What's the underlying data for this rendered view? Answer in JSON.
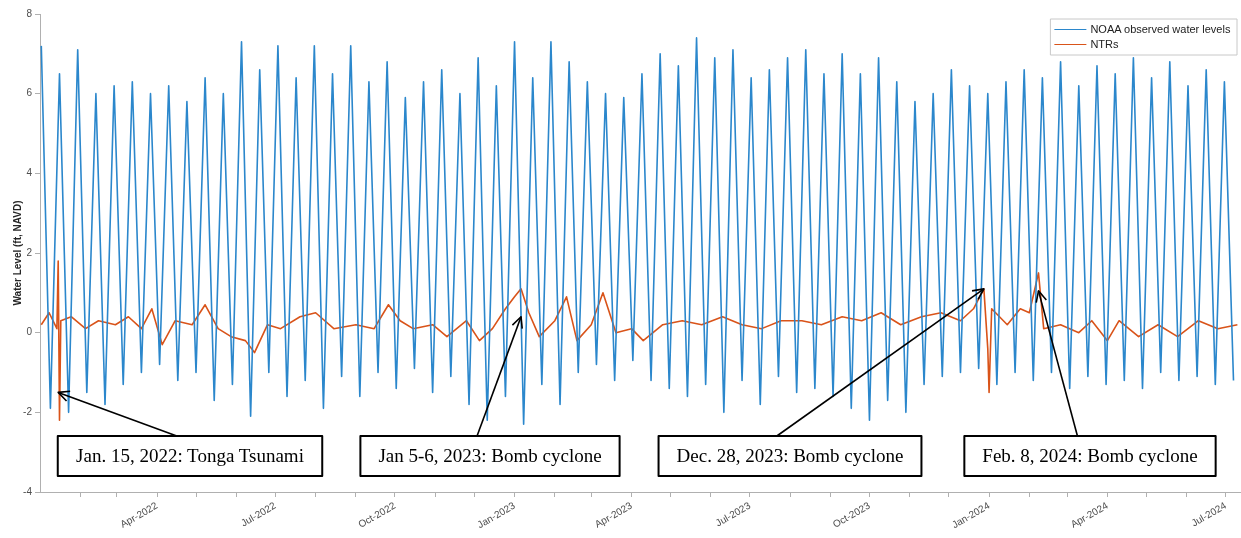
{
  "chart_data": {
    "type": "line",
    "ylabel": "Water Level (ft, NAVD)",
    "xlim": [
      "2022-01-01",
      "2024-07-12"
    ],
    "ylim": [
      -4,
      8
    ],
    "yticks": [
      -4,
      -2,
      0,
      2,
      4,
      6,
      8
    ],
    "xticks": [
      {
        "value": "2022-02",
        "label": null
      },
      {
        "value": "2022-03",
        "label": null
      },
      {
        "value": "2022-04",
        "label": "Apr-2022"
      },
      {
        "value": "2022-05",
        "label": null
      },
      {
        "value": "2022-06",
        "label": null
      },
      {
        "value": "2022-07",
        "label": "Jul-2022"
      },
      {
        "value": "2022-08",
        "label": null
      },
      {
        "value": "2022-09",
        "label": null
      },
      {
        "value": "2022-10",
        "label": "Oct-2022"
      },
      {
        "value": "2022-11",
        "label": null
      },
      {
        "value": "2022-12",
        "label": null
      },
      {
        "value": "2023-01",
        "label": "Jan-2023"
      },
      {
        "value": "2023-02",
        "label": null
      },
      {
        "value": "2023-03",
        "label": null
      },
      {
        "value": "2023-04",
        "label": "Apr-2023"
      },
      {
        "value": "2023-05",
        "label": null
      },
      {
        "value": "2023-06",
        "label": null
      },
      {
        "value": "2023-07",
        "label": "Jul-2023"
      },
      {
        "value": "2023-08",
        "label": null
      },
      {
        "value": "2023-09",
        "label": null
      },
      {
        "value": "2023-10",
        "label": "Oct-2023"
      },
      {
        "value": "2023-11",
        "label": null
      },
      {
        "value": "2023-12",
        "label": null
      },
      {
        "value": "2024-01",
        "label": "Jan-2024"
      },
      {
        "value": "2024-02",
        "label": null
      },
      {
        "value": "2024-03",
        "label": null
      },
      {
        "value": "2024-04",
        "label": "Apr-2024"
      },
      {
        "value": "2024-05",
        "label": null
      },
      {
        "value": "2024-06",
        "label": null
      },
      {
        "value": "2024-07",
        "label": "Jul-2024"
      }
    ],
    "legend": "top right",
    "marker": "none",
    "series": [
      {
        "name": "NOAA observed water levels",
        "color": "#2b87cc",
        "x": [
          "2022-01-02",
          "2022-01-09",
          "2022-01-16",
          "2022-01-23",
          "2022-01-30",
          "2022-02-06",
          "2022-02-13",
          "2022-02-20",
          "2022-02-27",
          "2022-03-06",
          "2022-03-13",
          "2022-03-20",
          "2022-03-27",
          "2022-04-03",
          "2022-04-10",
          "2022-04-17",
          "2022-04-24",
          "2022-05-01",
          "2022-05-08",
          "2022-05-15",
          "2022-05-22",
          "2022-05-29",
          "2022-06-05",
          "2022-06-12",
          "2022-06-19",
          "2022-06-26",
          "2022-07-03",
          "2022-07-10",
          "2022-07-17",
          "2022-07-24",
          "2022-07-31",
          "2022-08-07",
          "2022-08-14",
          "2022-08-21",
          "2022-08-28",
          "2022-09-04",
          "2022-09-11",
          "2022-09-18",
          "2022-09-25",
          "2022-10-02",
          "2022-10-09",
          "2022-10-16",
          "2022-10-23",
          "2022-10-30",
          "2022-11-06",
          "2022-11-13",
          "2022-11-20",
          "2022-11-27",
          "2022-12-04",
          "2022-12-11",
          "2022-12-18",
          "2022-12-25",
          "2023-01-01",
          "2023-01-08",
          "2023-01-15",
          "2023-01-22",
          "2023-01-29",
          "2023-02-05",
          "2023-02-12",
          "2023-02-19",
          "2023-02-26",
          "2023-03-05",
          "2023-03-12",
          "2023-03-19",
          "2023-03-26",
          "2023-04-02",
          "2023-04-09",
          "2023-04-16",
          "2023-04-23",
          "2023-04-30",
          "2023-05-07",
          "2023-05-14",
          "2023-05-21",
          "2023-05-28",
          "2023-06-04",
          "2023-06-11",
          "2023-06-18",
          "2023-06-25",
          "2023-07-02",
          "2023-07-09",
          "2023-07-16",
          "2023-07-23",
          "2023-07-30",
          "2023-08-06",
          "2023-08-13",
          "2023-08-20",
          "2023-08-27",
          "2023-09-03",
          "2023-09-10",
          "2023-09-17",
          "2023-09-24",
          "2023-10-01",
          "2023-10-08",
          "2023-10-15",
          "2023-10-22",
          "2023-10-29",
          "2023-11-05",
          "2023-11-12",
          "2023-11-19",
          "2023-11-26",
          "2023-12-03",
          "2023-12-10",
          "2023-12-17",
          "2023-12-24",
          "2023-12-31",
          "2024-01-07",
          "2024-01-14",
          "2024-01-21",
          "2024-01-28",
          "2024-02-04",
          "2024-02-11",
          "2024-02-18",
          "2024-02-25",
          "2024-03-03",
          "2024-03-10",
          "2024-03-17",
          "2024-03-24",
          "2024-03-31",
          "2024-04-07",
          "2024-04-14",
          "2024-04-21",
          "2024-04-28",
          "2024-05-05",
          "2024-05-12",
          "2024-05-19",
          "2024-05-26",
          "2024-06-02",
          "2024-06-09",
          "2024-06-16",
          "2024-06-23",
          "2024-06-30",
          "2024-07-07"
        ],
        "values": [
          7.2,
          -1.9,
          6.5,
          -2.0,
          7.1,
          -1.5,
          6.0,
          -1.8,
          6.2,
          -1.3,
          6.3,
          -1.0,
          6.0,
          -0.8,
          6.2,
          -1.2,
          5.8,
          -1.0,
          6.4,
          -1.7,
          6.0,
          -1.3,
          7.3,
          -2.1,
          6.6,
          -1.0,
          7.2,
          -1.6,
          6.4,
          -1.2,
          7.2,
          -1.9,
          6.5,
          -1.1,
          7.2,
          -1.6,
          6.3,
          -1.0,
          6.8,
          -1.4,
          5.9,
          -0.9,
          6.3,
          -1.5,
          6.6,
          -1.1,
          6.0,
          -1.8,
          6.9,
          -2.2,
          6.2,
          -1.6,
          7.3,
          -2.3,
          6.4,
          -1.3,
          7.3,
          -1.8,
          6.8,
          -1.0,
          6.3,
          -0.8,
          6.0,
          -1.2,
          5.9,
          -0.7,
          6.5,
          -1.2,
          7.0,
          -1.4,
          6.7,
          -1.6,
          7.4,
          -1.3,
          6.9,
          -2.0,
          7.1,
          -1.2,
          6.4,
          -1.8,
          6.6,
          -1.1,
          6.9,
          -1.5,
          7.1,
          -1.4,
          6.5,
          -1.6,
          7.0,
          -1.9,
          6.5,
          -2.2,
          6.9,
          -1.7,
          6.3,
          -2.0,
          5.8,
          -1.3,
          6.0,
          -1.1,
          6.6,
          -1.0,
          6.2,
          -0.9,
          6.0,
          -1.3,
          6.3,
          -1.0,
          6.6,
          -1.2,
          6.4,
          -1.0,
          6.8,
          -1.4,
          6.2,
          -1.1,
          6.7,
          -1.3,
          6.5,
          -1.2,
          6.9,
          -1.4,
          6.4,
          -1.0,
          6.8,
          -1.2,
          6.2,
          -1.1,
          6.6,
          -1.3,
          6.3,
          -1.2
        ]
      },
      {
        "name": "NTRs",
        "color": "#d95319",
        "x": [
          "2022-01-02",
          "2022-01-08",
          "2022-01-14",
          "2022-01-15",
          "2022-01-16",
          "2022-01-17",
          "2022-01-25",
          "2022-02-05",
          "2022-02-15",
          "2022-02-28",
          "2022-03-10",
          "2022-03-20",
          "2022-03-28",
          "2022-04-05",
          "2022-04-15",
          "2022-04-28",
          "2022-05-08",
          "2022-05-18",
          "2022-05-28",
          "2022-06-08",
          "2022-06-15",
          "2022-06-25",
          "2022-07-05",
          "2022-07-20",
          "2022-08-01",
          "2022-08-15",
          "2022-09-01",
          "2022-09-15",
          "2022-09-26",
          "2022-10-05",
          "2022-10-15",
          "2022-10-30",
          "2022-11-10",
          "2022-11-25",
          "2022-12-05",
          "2022-12-15",
          "2022-12-25",
          "2023-01-01",
          "2023-01-06",
          "2023-01-12",
          "2023-01-20",
          "2023-02-01",
          "2023-02-10",
          "2023-02-18",
          "2023-03-01",
          "2023-03-10",
          "2023-03-20",
          "2023-04-01",
          "2023-04-10",
          "2023-04-25",
          "2023-05-10",
          "2023-05-25",
          "2023-06-10",
          "2023-06-25",
          "2023-07-10",
          "2023-07-25",
          "2023-08-10",
          "2023-08-25",
          "2023-09-10",
          "2023-09-25",
          "2023-10-10",
          "2023-10-25",
          "2023-11-10",
          "2023-11-25",
          "2023-12-10",
          "2023-12-20",
          "2023-12-28",
          "2023-12-31",
          "2024-01-01",
          "2024-01-03",
          "2024-01-15",
          "2024-01-25",
          "2024-02-01",
          "2024-02-08",
          "2024-02-12",
          "2024-02-25",
          "2024-03-10",
          "2024-03-20",
          "2024-04-01",
          "2024-04-10",
          "2024-04-25",
          "2024-05-10",
          "2024-05-25",
          "2024-06-10",
          "2024-06-25",
          "2024-07-10"
        ],
        "values": [
          0.2,
          0.5,
          0.1,
          1.8,
          -2.2,
          0.3,
          0.4,
          0.1,
          0.3,
          0.2,
          0.4,
          0.1,
          0.6,
          -0.3,
          0.3,
          0.2,
          0.7,
          0.1,
          -0.1,
          -0.2,
          -0.5,
          0.2,
          0.1,
          0.4,
          0.5,
          0.1,
          0.2,
          0.1,
          0.7,
          0.3,
          0.1,
          0.2,
          -0.1,
          0.3,
          -0.2,
          0.1,
          0.6,
          0.9,
          1.1,
          0.5,
          -0.1,
          0.3,
          0.9,
          -0.2,
          0.2,
          1.0,
          0.0,
          0.1,
          -0.2,
          0.2,
          0.3,
          0.2,
          0.4,
          0.2,
          0.1,
          0.3,
          0.3,
          0.2,
          0.4,
          0.3,
          0.5,
          0.2,
          0.4,
          0.5,
          0.3,
          0.6,
          1.1,
          -0.4,
          -1.5,
          0.6,
          0.2,
          0.6,
          0.5,
          1.5,
          0.1,
          0.2,
          0.0,
          0.3,
          -0.2,
          0.3,
          -0.1,
          0.2,
          -0.1,
          0.3,
          0.1,
          0.2
        ]
      }
    ],
    "annotations": [
      {
        "text": "Jan. 15, 2022: Tonga Tsunami",
        "x": "2022-01-15",
        "y": -1.5
      },
      {
        "text": "Jan 5-6, 2023: Bomb cyclone",
        "x": "2023-01-06",
        "y": 0.4
      },
      {
        "text": "Dec. 28, 2023: Bomb cyclone",
        "x": "2023-12-28",
        "y": 1.1
      },
      {
        "text": "Feb. 8, 2024: Bomb cyclone",
        "x": "2024-02-08",
        "y": 1.05
      }
    ]
  }
}
